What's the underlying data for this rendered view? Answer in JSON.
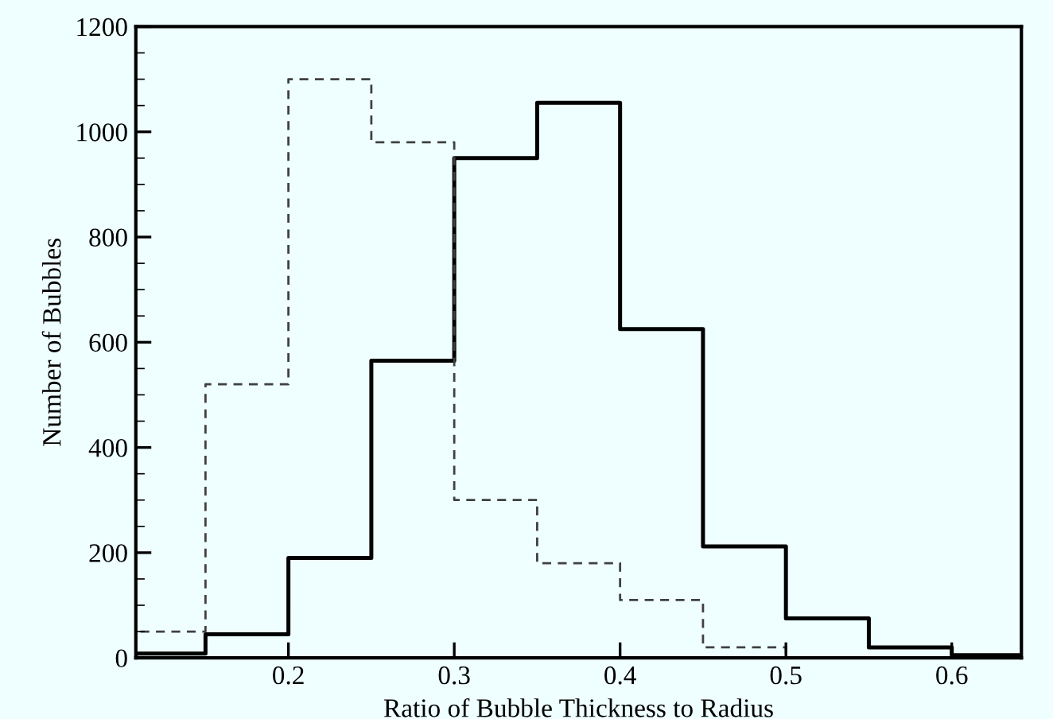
{
  "chart_data": {
    "type": "histogram",
    "xlabel": "Ratio of Bubble Thickness to Radius",
    "ylabel": "Number of Bubbles",
    "bins": [
      0.108,
      0.15,
      0.2,
      0.25,
      0.3,
      0.35,
      0.4,
      0.45,
      0.5,
      0.55,
      0.6,
      0.642
    ],
    "series": [
      {
        "color": "#000000",
        "line_style": "solid",
        "values": [
          8,
          45,
          190,
          565,
          950,
          1055,
          625,
          212,
          75,
          20,
          5
        ]
      },
      {
        "color": "#404040",
        "line_style": "dashed",
        "values": [
          50,
          520,
          1100,
          980,
          300,
          180,
          110,
          20,
          0,
          0,
          0
        ]
      }
    ],
    "xlim": [
      0.108,
      0.642
    ],
    "xticks": [
      0.2,
      0.3,
      0.4,
      0.5,
      0.6
    ],
    "ylim": [
      0,
      1200
    ],
    "yticks": [
      0,
      200,
      400,
      600,
      800,
      1000,
      1200
    ],
    "grid": false,
    "legend": false
  }
}
